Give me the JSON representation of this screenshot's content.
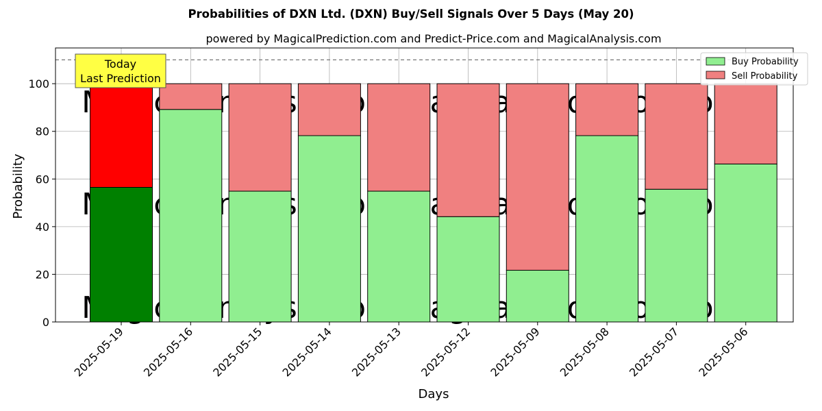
{
  "chart_data": {
    "type": "bar",
    "stacked": true,
    "title": "Probabilities of DXN Ltd. (DXN) Buy/Sell Signals Over 5 Days (May 20)",
    "subtitle": "powered by MagicalPrediction.com and Predict-Price.com and MagicalAnalysis.com",
    "xlabel": "Days",
    "ylabel": "Probability",
    "ylim": [
      0,
      115
    ],
    "yticks": [
      0,
      20,
      40,
      60,
      80,
      100
    ],
    "grid": true,
    "reference_line": 110,
    "categories": [
      "2025-05-19",
      "2025-05-16",
      "2025-05-15",
      "2025-05-14",
      "2025-05-13",
      "2025-05-12",
      "2025-05-09",
      "2025-05-08",
      "2025-05-07",
      "2025-05-06"
    ],
    "series": [
      {
        "name": "Buy Probability",
        "values": [
          56.5,
          89.2,
          54.9,
          78.2,
          54.9,
          44.2,
          21.7,
          78.2,
          55.7,
          66.3
        ]
      },
      {
        "name": "Sell Probability",
        "values": [
          43.5,
          10.8,
          45.1,
          21.8,
          45.1,
          55.8,
          78.3,
          21.8,
          44.3,
          33.7
        ]
      }
    ],
    "legend": {
      "position": "top-right",
      "entries": [
        "Buy Probability",
        "Sell Probability"
      ]
    },
    "annotation": {
      "line1": "Today",
      "line2": "Last Prediction",
      "category": "2025-05-19"
    },
    "watermarks": [
      "MagicalAnalysis.com",
      "MagicalPrediction.com"
    ],
    "colors": {
      "buy_today": "#008000",
      "sell_today": "#ff0000",
      "buy": "#90ee90",
      "sell": "#f08080",
      "annotation_bg": "#ffff44"
    }
  }
}
